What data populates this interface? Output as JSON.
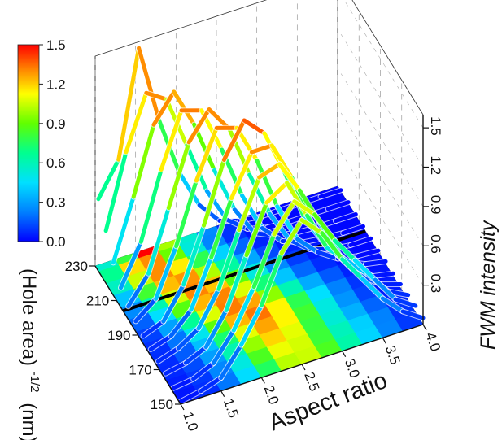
{
  "chart_data": {
    "type": "3d-waterfall-line",
    "xlabel": "Aspect ratio",
    "ylabel_main": "(Hole area)",
    "ylabel_sup": "-1/2",
    "ylabel_unit": "(nm)",
    "zlabel": "FWM intensity",
    "x_ticks": [
      "1.0",
      "1.5",
      "2.0",
      "2.5",
      "3.0",
      "3.5",
      "4.0"
    ],
    "y_ticks": [
      "150",
      "170",
      "190",
      "210",
      "230"
    ],
    "z_ticks": [
      "0.3",
      "0.6",
      "0.9",
      "1.2",
      "1.5"
    ],
    "xlim": [
      1.0,
      4.0
    ],
    "ylim": [
      150,
      230
    ],
    "zlim": [
      0,
      1.6
    ],
    "colorbar": {
      "ticks": [
        "1.5",
        "1.2",
        "0.9",
        "0.6",
        "0.3",
        "0.0"
      ],
      "range": [
        0,
        1.5
      ],
      "colors": [
        "#0000ff",
        "#00a0ff",
        "#00e5ff",
        "#00ff80",
        "#80ff00",
        "#ffff00",
        "#ff8000",
        "#ff0000"
      ]
    },
    "x": [
      1.0,
      1.25,
      1.5,
      1.75,
      2.0,
      2.25,
      2.5,
      2.75,
      3.0,
      3.25,
      3.5,
      3.75,
      4.0
    ],
    "series": [
      {
        "y": 150,
        "values": [
          0.02,
          0.05,
          0.1,
          0.3,
          0.55,
          0.9,
          1.1,
          0.95,
          0.7,
          0.5,
          0.3,
          0.15,
          0.05
        ]
      },
      {
        "y": 157,
        "values": [
          0.03,
          0.05,
          0.12,
          0.32,
          0.6,
          0.95,
          1.15,
          1.0,
          0.75,
          0.55,
          0.35,
          0.15,
          0.05
        ]
      },
      {
        "y": 164,
        "values": [
          0.05,
          0.08,
          0.15,
          0.38,
          0.75,
          1.1,
          1.2,
          0.9,
          0.6,
          0.45,
          0.3,
          0.12,
          0.04
        ]
      },
      {
        "y": 171,
        "values": [
          0.05,
          0.1,
          0.2,
          0.45,
          0.85,
          1.2,
          1.25,
          1.0,
          0.7,
          0.4,
          0.2,
          0.08,
          0.03
        ]
      },
      {
        "y": 178,
        "values": [
          0.05,
          0.1,
          0.25,
          0.6,
          1.0,
          1.3,
          1.3,
          1.0,
          0.6,
          0.35,
          0.15,
          0.05,
          0.02
        ]
      },
      {
        "y": 185,
        "values": [
          0.06,
          0.12,
          0.35,
          0.75,
          1.2,
          1.45,
          1.3,
          0.95,
          0.55,
          0.3,
          0.12,
          0.05,
          0.02
        ]
      },
      {
        "y": 192,
        "values": [
          0.08,
          0.2,
          0.55,
          1.0,
          1.35,
          1.3,
          1.0,
          0.6,
          0.3,
          0.15,
          0.05,
          0.02,
          0.01
        ]
      },
      {
        "y": 199,
        "values": [
          0.1,
          0.3,
          0.75,
          1.2,
          1.4,
          1.2,
          0.8,
          0.45,
          0.2,
          0.08,
          0.03,
          0.01,
          0.01
        ]
      },
      {
        "y": 206,
        "values": [
          0.15,
          0.45,
          0.95,
          1.35,
          1.3,
          0.95,
          0.55,
          0.25,
          0.1,
          0.04,
          0.02,
          0.01,
          0.01
        ]
      },
      {
        "y": 213,
        "values": [
          0.25,
          0.7,
          1.2,
          1.4,
          1.1,
          0.7,
          0.35,
          0.12,
          0.05,
          0.02,
          0.01,
          0.01,
          0.01
        ]
      },
      {
        "y": 220,
        "values": [
          0.4,
          0.95,
          1.35,
          1.25,
          0.85,
          0.45,
          0.18,
          0.06,
          0.02,
          0.01,
          0.01,
          0.01,
          0.01
        ]
      },
      {
        "y": 227,
        "values": [
          0.55,
          0.8,
          1.6,
          1.0,
          0.55,
          0.25,
          0.08,
          0.03,
          0.01,
          0.01,
          0.01,
          0.01,
          0.01
        ]
      }
    ],
    "reference_line_y": 204
  }
}
